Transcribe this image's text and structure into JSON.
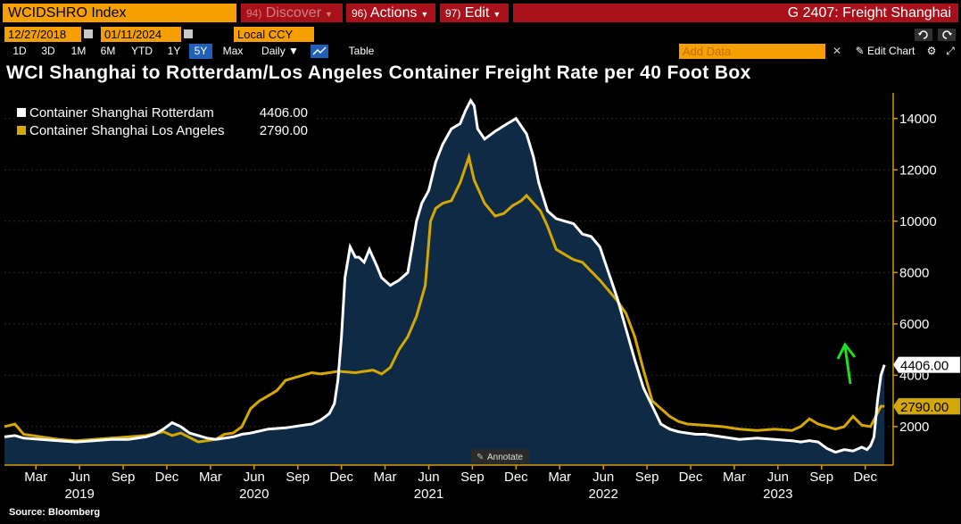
{
  "header": {
    "ticker": "WCIDSHRO Index",
    "menus": [
      {
        "num": "94)",
        "label": "Discover"
      },
      {
        "num": "96)",
        "label": "Actions"
      },
      {
        "num": "97)",
        "label": "Edit"
      }
    ],
    "function_title": "G 2407: Freight Shanghai"
  },
  "controls": {
    "start_date": "12/27/2018",
    "end_date": "01/11/2024",
    "currency": "Local CCY",
    "periods": [
      "1D",
      "3D",
      "1M",
      "6M",
      "YTD",
      "1Y",
      "5Y",
      "Max"
    ],
    "active_period": "5Y",
    "frequency": "Daily ▼",
    "table_label": "Table",
    "add_data_placeholder": "Add Data",
    "edit_chart_label": "Edit Chart"
  },
  "colors": {
    "rotterdam": "#ffffff",
    "los_angeles": "#d4a800",
    "area_fill": "#0f2a45",
    "axis": "#d49a00"
  },
  "annotate_label": "Annotate",
  "source_label": "Source: Bloomberg",
  "chart_data": {
    "type": "line",
    "title": "WCI Shanghai to Rotterdam/Los Angeles Container Freight Rate per 40 Foot Box",
    "ylabel": "",
    "xlabel": "",
    "ylim": [
      500,
      15000
    ],
    "xlim": [
      2018.99,
      2024.08
    ],
    "yticks": [
      2000,
      4000,
      6000,
      8000,
      10000,
      12000,
      14000
    ],
    "month_ticks": [
      {
        "label": "Mar",
        "x": 2019.17
      },
      {
        "label": "Jun",
        "x": 2019.42
      },
      {
        "label": "Sep",
        "x": 2019.67
      },
      {
        "label": "Dec",
        "x": 2019.92
      },
      {
        "label": "Mar",
        "x": 2020.17
      },
      {
        "label": "Jun",
        "x": 2020.42
      },
      {
        "label": "Sep",
        "x": 2020.67
      },
      {
        "label": "Dec",
        "x": 2020.92
      },
      {
        "label": "Mar",
        "x": 2021.17
      },
      {
        "label": "Jun",
        "x": 2021.42
      },
      {
        "label": "Sep",
        "x": 2021.67
      },
      {
        "label": "Dec",
        "x": 2021.92
      },
      {
        "label": "Mar",
        "x": 2022.17
      },
      {
        "label": "Jun",
        "x": 2022.42
      },
      {
        "label": "Sep",
        "x": 2022.67
      },
      {
        "label": "Dec",
        "x": 2022.92
      },
      {
        "label": "Mar",
        "x": 2023.17
      },
      {
        "label": "Jun",
        "x": 2023.42
      },
      {
        "label": "Sep",
        "x": 2023.67
      },
      {
        "label": "Dec",
        "x": 2023.92
      }
    ],
    "year_ticks": [
      {
        "label": "2019",
        "x": 2019.42
      },
      {
        "label": "2020",
        "x": 2020.42
      },
      {
        "label": "2021",
        "x": 2021.42
      },
      {
        "label": "2022",
        "x": 2022.42
      },
      {
        "label": "2023",
        "x": 2023.42
      }
    ],
    "series": [
      {
        "name": "Container Shanghai Rotterdam",
        "last": "4406.00",
        "x": [
          2018.99,
          2019.05,
          2019.1,
          2019.2,
          2019.3,
          2019.4,
          2019.5,
          2019.6,
          2019.7,
          2019.8,
          2019.85,
          2019.9,
          2019.95,
          2020.0,
          2020.05,
          2020.1,
          2020.15,
          2020.2,
          2020.25,
          2020.3,
          2020.35,
          2020.4,
          2020.5,
          2020.6,
          2020.7,
          2020.75,
          2020.8,
          2020.85,
          2020.88,
          2020.9,
          2020.92,
          2020.94,
          2020.97,
          2021.0,
          2021.02,
          2021.05,
          2021.08,
          2021.12,
          2021.15,
          2021.2,
          2021.25,
          2021.3,
          2021.35,
          2021.38,
          2021.42,
          2021.46,
          2021.5,
          2021.55,
          2021.6,
          2021.63,
          2021.66,
          2021.68,
          2021.7,
          2021.74,
          2021.8,
          2021.87,
          2021.92,
          2021.98,
          2022.02,
          2022.05,
          2022.1,
          2022.15,
          2022.2,
          2022.25,
          2022.3,
          2022.35,
          2022.4,
          2022.45,
          2022.5,
          2022.55,
          2022.6,
          2022.65,
          2022.7,
          2022.75,
          2022.8,
          2022.85,
          2022.9,
          2022.95,
          2023.0,
          2023.1,
          2023.2,
          2023.3,
          2023.4,
          2023.5,
          2023.55,
          2023.6,
          2023.65,
          2023.7,
          2023.75,
          2023.8,
          2023.85,
          2023.9,
          2023.93,
          2023.95,
          2023.97,
          2023.99,
          2024.01,
          2024.03
        ],
        "y": [
          1600,
          1650,
          1550,
          1500,
          1450,
          1400,
          1450,
          1500,
          1500,
          1600,
          1700,
          1900,
          2150,
          2000,
          1750,
          1650,
          1550,
          1500,
          1550,
          1600,
          1700,
          1750,
          1900,
          1950,
          2050,
          2100,
          2250,
          2500,
          2900,
          3800,
          5500,
          7800,
          9000,
          8600,
          8600,
          8400,
          8900,
          8300,
          7800,
          7500,
          7700,
          8000,
          10000,
          10700,
          11200,
          12300,
          13000,
          13600,
          13800,
          14300,
          14700,
          14500,
          13600,
          13200,
          13500,
          13800,
          14000,
          13400,
          12500,
          11500,
          10400,
          10100,
          10000,
          9900,
          9500,
          9400,
          9000,
          8000,
          7000,
          5800,
          4600,
          3500,
          2800,
          2100,
          1900,
          1800,
          1750,
          1700,
          1700,
          1600,
          1500,
          1550,
          1500,
          1450,
          1400,
          1450,
          1400,
          1150,
          1000,
          1100,
          1050,
          1200,
          1100,
          1250,
          1600,
          3000,
          4000,
          4406
        ]
      },
      {
        "name": "Container Shanghai Los Angeles",
        "last": "2790.00",
        "x": [
          2018.99,
          2019.05,
          2019.1,
          2019.2,
          2019.3,
          2019.4,
          2019.5,
          2019.6,
          2019.7,
          2019.8,
          2019.9,
          2019.95,
          2020.0,
          2020.1,
          2020.2,
          2020.25,
          2020.3,
          2020.35,
          2020.4,
          2020.45,
          2020.5,
          2020.55,
          2020.6,
          2020.65,
          2020.7,
          2020.75,
          2020.8,
          2020.85,
          2020.9,
          2021.0,
          2021.1,
          2021.15,
          2021.2,
          2021.25,
          2021.3,
          2021.35,
          2021.4,
          2021.43,
          2021.46,
          2021.5,
          2021.55,
          2021.6,
          2021.65,
          2021.68,
          2021.7,
          2021.74,
          2021.8,
          2021.85,
          2021.9,
          2021.95,
          2021.98,
          2022.02,
          2022.06,
          2022.1,
          2022.15,
          2022.2,
          2022.25,
          2022.3,
          2022.4,
          2022.5,
          2022.55,
          2022.6,
          2022.65,
          2022.7,
          2022.75,
          2022.8,
          2022.85,
          2022.9,
          2023.0,
          2023.1,
          2023.2,
          2023.3,
          2023.4,
          2023.5,
          2023.55,
          2023.6,
          2023.65,
          2023.7,
          2023.75,
          2023.8,
          2023.85,
          2023.9,
          2023.95,
          2023.98,
          2024.01,
          2024.03
        ],
        "y": [
          2000,
          2100,
          1700,
          1600,
          1500,
          1450,
          1500,
          1550,
          1600,
          1650,
          1800,
          1650,
          1750,
          1400,
          1500,
          1700,
          1750,
          2000,
          2700,
          3000,
          3200,
          3400,
          3800,
          3900,
          4000,
          4100,
          4050,
          4100,
          4150,
          4100,
          4200,
          4050,
          4300,
          5000,
          5500,
          6300,
          7500,
          10000,
          10500,
          10700,
          10800,
          11500,
          12500,
          11600,
          11300,
          10700,
          10200,
          10300,
          10600,
          10800,
          11000,
          10700,
          10400,
          9800,
          8900,
          8700,
          8500,
          8400,
          7700,
          6900,
          6400,
          5500,
          4200,
          3000,
          2700,
          2400,
          2200,
          2100,
          2050,
          2000,
          1900,
          1850,
          1900,
          1850,
          2000,
          2300,
          2100,
          2000,
          1900,
          2000,
          2400,
          2050,
          2000,
          2400,
          2790,
          2790
        ]
      }
    ]
  }
}
